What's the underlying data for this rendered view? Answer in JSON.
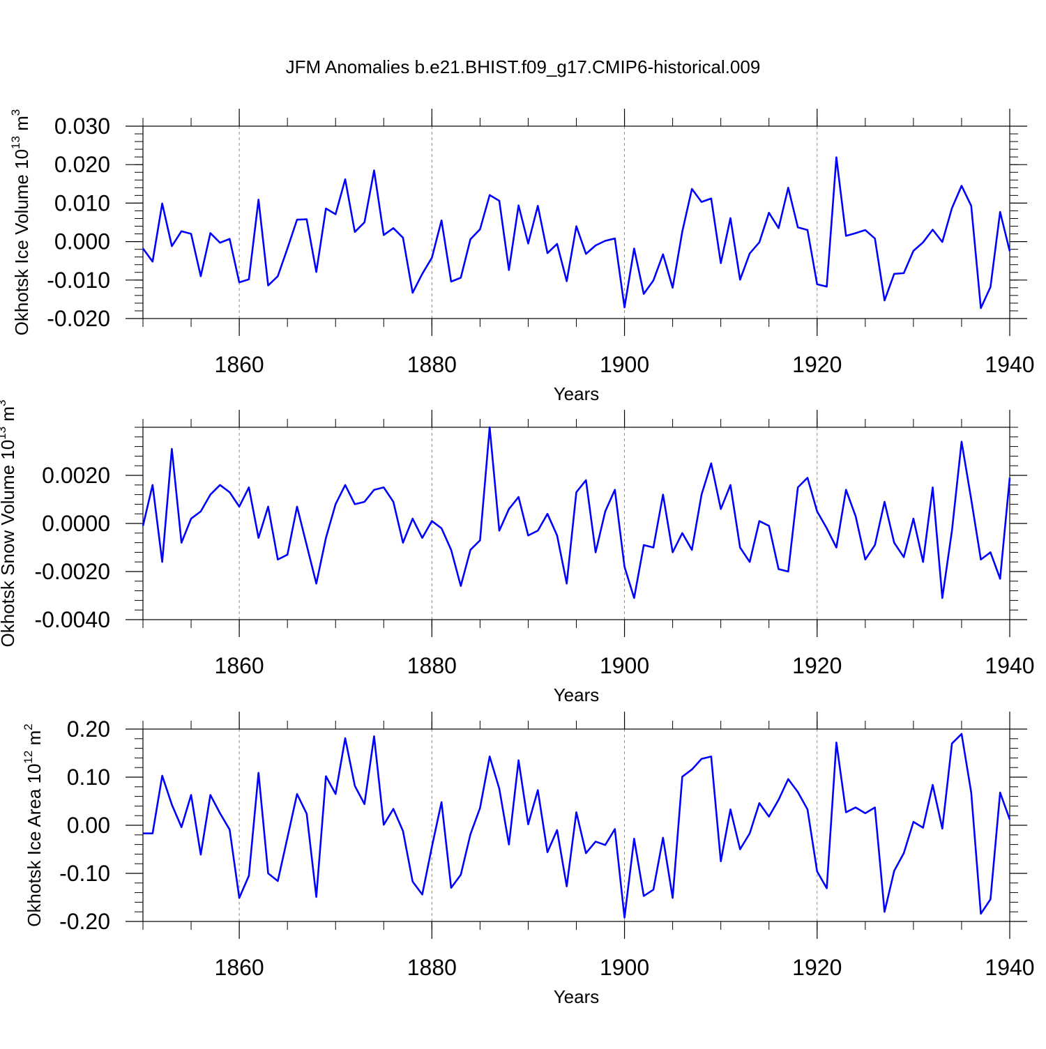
{
  "figure_title": "JFM Anomalies b.e21.BHIST.f09_g17.CMIP6-historical.009",
  "colors": {
    "line": "#0000ff",
    "axis": "#000000",
    "grid": "#888888"
  },
  "chart_data": [
    {
      "type": "line",
      "ylabel_main": "Okhotsk Ice Volume 10",
      "ylabel_sup1": "13",
      "ylabel_unit": " m",
      "ylabel_sup2": "3",
      "xlabel": "Years",
      "xlim": [
        1850,
        1940
      ],
      "ylim": [
        -0.02,
        0.03
      ],
      "x_ticks": [
        1860,
        1880,
        1900,
        1920,
        1940
      ],
      "y_ticks": [
        -0.02,
        -0.01,
        0.0,
        0.01,
        0.02,
        0.03
      ],
      "y_tick_labels": [
        "-0.020",
        "-0.010",
        "0.000",
        "0.010",
        "0.020",
        "0.030"
      ],
      "x_start": 1850,
      "series": [
        {
          "name": "Okhotsk Ice Volume",
          "values": [
            -0.0018,
            -0.0052,
            0.0099,
            -0.0012,
            0.0027,
            0.002,
            -0.009,
            0.0022,
            -0.0003,
            0.0007,
            -0.0106,
            -0.0098,
            0.0109,
            -0.0114,
            -0.009,
            -0.0018,
            0.0057,
            0.0058,
            -0.0079,
            0.0086,
            0.0071,
            0.0162,
            0.0025,
            0.005,
            0.0185,
            0.0017,
            0.0035,
            0.001,
            -0.0133,
            -0.0084,
            -0.0042,
            0.0055,
            -0.0104,
            -0.0094,
            0.0006,
            0.0032,
            0.0121,
            0.0106,
            -0.0074,
            0.0094,
            -0.0005,
            0.0093,
            -0.003,
            -0.0006,
            -0.0103,
            0.004,
            -0.0032,
            -0.001,
            0.0002,
            0.0008,
            -0.0171,
            -0.0018,
            -0.0136,
            -0.0101,
            -0.0033,
            -0.012,
            0.0026,
            0.0137,
            0.0103,
            0.0112,
            -0.0056,
            0.0061,
            -0.0099,
            -0.0031,
            -0.0002,
            0.0075,
            0.0035,
            0.014,
            0.0037,
            0.003,
            -0.0111,
            -0.0117,
            0.0219,
            0.0015,
            0.0022,
            0.003,
            0.0008,
            -0.0153,
            -0.0084,
            -0.0082,
            -0.0024,
            -0.0002,
            0.0031,
            -0.0001,
            0.0087,
            0.0145,
            0.0093,
            -0.0173,
            -0.0118,
            0.0077,
            -0.0025
          ]
        }
      ]
    },
    {
      "type": "line",
      "ylabel_main": "Okhotsk Snow Volume 10",
      "ylabel_sup1": "13",
      "ylabel_unit": " m",
      "ylabel_sup2": "3",
      "xlabel": "Years",
      "xlim": [
        1850,
        1940
      ],
      "ylim": [
        -0.004,
        0.004
      ],
      "x_ticks": [
        1860,
        1880,
        1900,
        1920,
        1940
      ],
      "y_ticks": [
        -0.004,
        -0.002,
        0.0,
        0.002
      ],
      "y_tick_labels": [
        "-0.0040",
        "-0.0020",
        "0.0000",
        "0.0020"
      ],
      "x_start": 1850,
      "series": [
        {
          "name": "Okhotsk Snow Volume",
          "values": [
            -0.0001,
            0.0016,
            -0.0016,
            0.0031,
            -0.0008,
            0.0002,
            0.0005,
            0.0012,
            0.0016,
            0.0013,
            0.0007,
            0.0015,
            -0.0006,
            0.0007,
            -0.0015,
            -0.0013,
            0.0007,
            -0.0009,
            -0.0025,
            -0.0006,
            0.0008,
            0.0016,
            0.0008,
            0.0009,
            0.0014,
            0.0015,
            0.0009,
            -0.0008,
            0.0002,
            -0.0006,
            0.0001,
            -0.0002,
            -0.0011,
            -0.0026,
            -0.0011,
            -0.0007,
            0.004,
            -0.0003,
            0.0006,
            0.0011,
            -0.0005,
            -0.0003,
            0.0004,
            -0.0005,
            -0.0025,
            0.0013,
            0.0018,
            -0.0012,
            0.0005,
            0.0014,
            -0.0018,
            -0.0031,
            -0.0009,
            -0.001,
            0.0012,
            -0.0012,
            -0.0004,
            -0.0011,
            0.0012,
            0.0025,
            0.0006,
            0.0016,
            -0.001,
            -0.0016,
            0.0001,
            -0.0001,
            -0.0019,
            -0.002,
            0.0015,
            0.0019,
            0.0005,
            -0.0002,
            -0.001,
            0.0014,
            0.0003,
            -0.0015,
            -0.0009,
            0.0009,
            -0.0008,
            -0.0014,
            0.0002,
            -0.0016,
            0.0015,
            -0.0031,
            -0.0003,
            0.0034,
            0.001,
            -0.0015,
            -0.0012,
            -0.0023,
            0.0019
          ]
        }
      ]
    },
    {
      "type": "line",
      "ylabel_main": "Okhotsk Ice Area 10",
      "ylabel_sup1": "12",
      "ylabel_unit": " m",
      "ylabel_sup2": "2",
      "xlabel": "Years",
      "xlim": [
        1850,
        1940
      ],
      "ylim": [
        -0.2,
        0.2
      ],
      "x_ticks": [
        1860,
        1880,
        1900,
        1920,
        1940
      ],
      "y_ticks": [
        -0.2,
        -0.1,
        0.0,
        0.1,
        0.2
      ],
      "y_tick_labels": [
        "-0.20",
        "-0.10",
        "0.00",
        "0.10",
        "0.20"
      ],
      "x_start": 1850,
      "series": [
        {
          "name": "Okhotsk Ice Area",
          "values": [
            -0.017,
            -0.017,
            0.103,
            0.043,
            -0.004,
            0.063,
            -0.061,
            0.063,
            0.025,
            -0.009,
            -0.151,
            -0.105,
            0.109,
            -0.1,
            -0.116,
            -0.026,
            0.065,
            0.024,
            -0.149,
            0.102,
            0.065,
            0.181,
            0.082,
            0.044,
            0.185,
            0.001,
            0.034,
            -0.012,
            -0.117,
            -0.144,
            -0.045,
            0.048,
            -0.13,
            -0.103,
            -0.019,
            0.036,
            0.143,
            0.076,
            -0.04,
            0.135,
            0.002,
            0.073,
            -0.056,
            -0.01,
            -0.127,
            0.027,
            -0.058,
            -0.034,
            -0.041,
            -0.008,
            -0.192,
            -0.028,
            -0.147,
            -0.134,
            -0.026,
            -0.151,
            0.101,
            0.116,
            0.138,
            0.143,
            -0.075,
            0.033,
            -0.05,
            -0.017,
            0.046,
            0.018,
            0.053,
            0.096,
            0.069,
            0.033,
            -0.096,
            -0.131,
            0.172,
            0.027,
            0.037,
            0.025,
            0.037,
            -0.18,
            -0.095,
            -0.058,
            0.007,
            -0.005,
            0.084,
            -0.007,
            0.17,
            0.19,
            0.068,
            -0.184,
            -0.154,
            0.068,
            0.012
          ]
        }
      ]
    }
  ]
}
